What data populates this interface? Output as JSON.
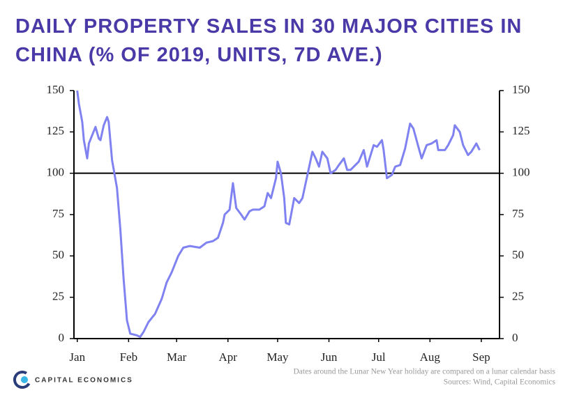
{
  "chart_data": {
    "type": "line",
    "title_lines": [
      "DAILY PROPERTY SALES IN 30 MAJOR CITIES IN",
      "CHINA (% OF 2019, UNITS, 7D AVE.)"
    ],
    "x": [
      0,
      1,
      3,
      4,
      6,
      7,
      9,
      11,
      13,
      14,
      16,
      18,
      19,
      21,
      24,
      26,
      28,
      30,
      32,
      36,
      38,
      40,
      43,
      47,
      51,
      54,
      57,
      61,
      64,
      68,
      74,
      78,
      82,
      85,
      88,
      89,
      92,
      94,
      96,
      99,
      101,
      104,
      106,
      110,
      113,
      115,
      117,
      120,
      121,
      123,
      125,
      126,
      128,
      131,
      134,
      136,
      139,
      142,
      144,
      146,
      148,
      151,
      153,
      156,
      158,
      161,
      163,
      165,
      168,
      170,
      173,
      175,
      179,
      181,
      184,
      185,
      187,
      190,
      192,
      195,
      198,
      201,
      203,
      206,
      208,
      211,
      214,
      217,
      218,
      222,
      224,
      227,
      228,
      231,
      233,
      236,
      238,
      241,
      243
    ],
    "series": [
      {
        "color": "#7f82f0",
        "values": [
          150,
          142,
          131,
          120,
          109,
          118,
          123,
          128,
          121,
          120,
          129,
          134,
          131,
          108,
          91,
          66,
          36,
          11,
          3,
          2,
          1,
          4,
          10,
          15,
          24,
          34,
          40,
          50,
          55,
          56,
          55,
          58,
          59,
          61,
          70,
          75,
          78,
          94,
          79,
          75,
          72,
          77,
          78,
          78,
          80,
          88,
          85,
          97,
          107,
          100,
          85,
          70,
          69,
          85,
          82,
          85,
          99,
          113,
          109,
          104,
          113,
          109,
          100,
          102,
          105,
          109,
          102,
          102,
          105,
          107,
          114,
          104,
          117,
          116,
          120,
          114,
          97,
          99,
          104,
          105,
          115,
          130,
          127,
          116,
          109,
          117,
          118,
          120,
          114,
          114,
          117,
          123,
          129,
          125,
          117,
          111,
          113,
          118,
          114
        ]
      }
    ],
    "xlim": [
      -2,
      255
    ],
    "xticks": [
      {
        "value": 0,
        "label": "Jan"
      },
      {
        "value": 31,
        "label": "Feb"
      },
      {
        "value": 60,
        "label": "Mar"
      },
      {
        "value": 91,
        "label": "Apr"
      },
      {
        "value": 121,
        "label": "May"
      },
      {
        "value": 152,
        "label": "Jun"
      },
      {
        "value": 182,
        "label": "Jul"
      },
      {
        "value": 213,
        "label": "Aug"
      },
      {
        "value": 244,
        "label": "Sep"
      }
    ],
    "ylim": [
      0,
      150
    ],
    "yticks": [
      0,
      25,
      50,
      75,
      100,
      125,
      150
    ],
    "y2lim": [
      0,
      150
    ],
    "y2ticks": [
      0,
      25,
      50,
      75,
      100,
      125,
      150
    ],
    "reference_line": 100,
    "notes": [
      "Dates around the Lunar New Year holiday are compared on a lunar calendar basis",
      "Sources: Wind, Capital Economics"
    ],
    "brand": "CAPITAL ECONOMICS"
  }
}
